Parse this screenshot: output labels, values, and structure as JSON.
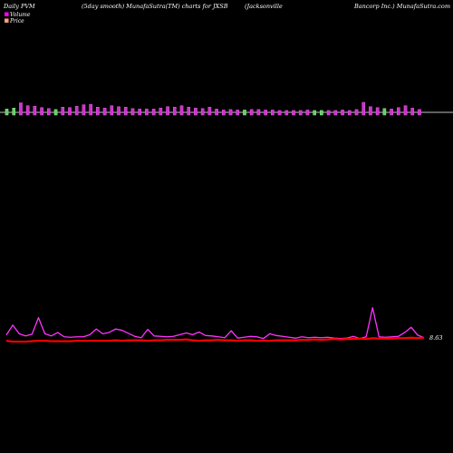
{
  "header": {
    "left": "Daily PVM",
    "center_left": "(5day smooth) MunafaSutra(TM) charts for JXSB",
    "center_right": "(Jacksonville",
    "right": "Bancorp Inc.) MunafaSutra.com"
  },
  "legend": [
    {
      "label": "Volume",
      "color": "#ff00ff"
    },
    {
      "label": "Price",
      "color": "#ffa07a"
    }
  ],
  "colors": {
    "background": "#000000",
    "volume_up": "#cc33cc",
    "volume_down": "#66cc66",
    "volume_line": "#ff33ff",
    "price_line": "#ff0000",
    "baseline": "#ffffff"
  },
  "chart_data": {
    "type": "bar",
    "last_price_label": "8.63",
    "volume_bars": [
      {
        "value": 0.35,
        "dir": "down"
      },
      {
        "value": 0.45,
        "dir": "down"
      },
      {
        "value": 1.0,
        "dir": "up"
      },
      {
        "value": 0.7,
        "dir": "up"
      },
      {
        "value": 0.65,
        "dir": "up"
      },
      {
        "value": 0.5,
        "dir": "up"
      },
      {
        "value": 0.4,
        "dir": "up"
      },
      {
        "value": 0.3,
        "dir": "down"
      },
      {
        "value": 0.55,
        "dir": "up"
      },
      {
        "value": 0.5,
        "dir": "up"
      },
      {
        "value": 0.65,
        "dir": "up"
      },
      {
        "value": 0.8,
        "dir": "up"
      },
      {
        "value": 0.85,
        "dir": "up"
      },
      {
        "value": 0.55,
        "dir": "up"
      },
      {
        "value": 0.45,
        "dir": "up"
      },
      {
        "value": 0.7,
        "dir": "up"
      },
      {
        "value": 0.6,
        "dir": "up"
      },
      {
        "value": 0.55,
        "dir": "up"
      },
      {
        "value": 0.4,
        "dir": "up"
      },
      {
        "value": 0.35,
        "dir": "up"
      },
      {
        "value": 0.35,
        "dir": "up"
      },
      {
        "value": 0.35,
        "dir": "up"
      },
      {
        "value": 0.45,
        "dir": "up"
      },
      {
        "value": 0.6,
        "dir": "up"
      },
      {
        "value": 0.55,
        "dir": "up"
      },
      {
        "value": 0.7,
        "dir": "up"
      },
      {
        "value": 0.55,
        "dir": "up"
      },
      {
        "value": 0.45,
        "dir": "up"
      },
      {
        "value": 0.4,
        "dir": "up"
      },
      {
        "value": 0.55,
        "dir": "up"
      },
      {
        "value": 0.35,
        "dir": "up"
      },
      {
        "value": 0.25,
        "dir": "up"
      },
      {
        "value": 0.3,
        "dir": "up"
      },
      {
        "value": 0.25,
        "dir": "up"
      },
      {
        "value": 0.25,
        "dir": "down"
      },
      {
        "value": 0.3,
        "dir": "up"
      },
      {
        "value": 0.3,
        "dir": "up"
      },
      {
        "value": 0.25,
        "dir": "up"
      },
      {
        "value": 0.25,
        "dir": "up"
      },
      {
        "value": 0.2,
        "dir": "up"
      },
      {
        "value": 0.2,
        "dir": "up"
      },
      {
        "value": 0.2,
        "dir": "up"
      },
      {
        "value": 0.2,
        "dir": "up"
      },
      {
        "value": 0.25,
        "dir": "up"
      },
      {
        "value": 0.2,
        "dir": "down"
      },
      {
        "value": 0.2,
        "dir": "down"
      },
      {
        "value": 0.2,
        "dir": "up"
      },
      {
        "value": 0.2,
        "dir": "up"
      },
      {
        "value": 0.25,
        "dir": "up"
      },
      {
        "value": 0.2,
        "dir": "up"
      },
      {
        "value": 0.3,
        "dir": "up"
      },
      {
        "value": 1.05,
        "dir": "up"
      },
      {
        "value": 0.6,
        "dir": "up"
      },
      {
        "value": 0.5,
        "dir": "up"
      },
      {
        "value": 0.4,
        "dir": "down"
      },
      {
        "value": 0.35,
        "dir": "up"
      },
      {
        "value": 0.5,
        "dir": "up"
      },
      {
        "value": 0.7,
        "dir": "up"
      },
      {
        "value": 0.45,
        "dir": "up"
      },
      {
        "value": 0.3,
        "dir": "up"
      }
    ],
    "volume_line": [
      4.2,
      6.5,
      4.5,
      4.0,
      4.4,
      8.2,
      4.5,
      4.0,
      4.8,
      3.8,
      3.7,
      3.8,
      3.8,
      4.3,
      5.6,
      4.5,
      4.8,
      5.6,
      5.3,
      4.6,
      3.9,
      3.6,
      5.5,
      4.0,
      3.9,
      3.8,
      3.9,
      4.3,
      4.7,
      4.3,
      4.9,
      4.1,
      4.0,
      3.8,
      3.6,
      5.2,
      3.5,
      3.7,
      3.9,
      3.8,
      3.4,
      4.5,
      4.1,
      3.9,
      3.7,
      3.5,
      3.8,
      3.6,
      3.7,
      3.6,
      3.7,
      3.5,
      3.4,
      3.5,
      3.9,
      3.4,
      3.8,
      10.5,
      3.8,
      3.7,
      3.8,
      3.9,
      4.8,
      6.0,
      4.2,
      3.6
    ],
    "price_line": [
      2.9,
      2.7,
      2.7,
      2.7,
      2.8,
      2.9,
      2.9,
      2.8,
      2.8,
      2.8,
      2.8,
      2.9,
      2.9,
      2.9,
      2.9,
      2.9,
      2.9,
      3.0,
      2.9,
      3.0,
      3.0,
      3.0,
      2.9,
      3.0,
      3.0,
      3.1,
      3.1,
      3.1,
      3.2,
      3.0,
      2.9,
      3.0,
      3.0,
      3.1,
      3.0,
      3.0,
      2.9,
      3.0,
      3.0,
      2.9,
      2.9,
      2.9,
      3.0,
      3.0,
      3.0,
      3.0,
      3.1,
      3.1,
      3.2,
      3.1,
      3.2,
      3.3,
      3.2,
      3.3,
      3.3,
      3.4,
      3.3,
      3.5,
      3.4,
      3.4,
      3.4,
      3.5,
      3.5,
      3.6,
      3.5,
      3.6
    ]
  }
}
